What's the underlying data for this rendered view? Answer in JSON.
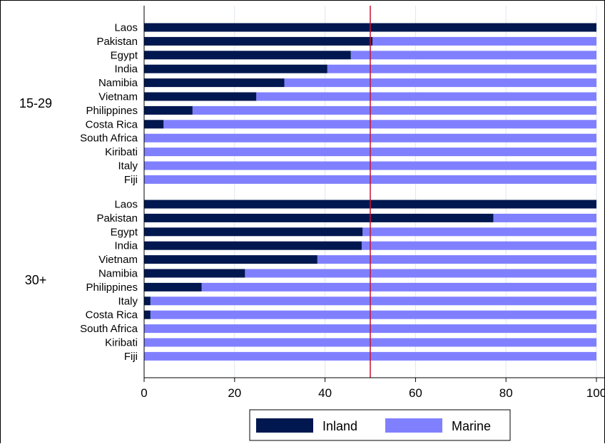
{
  "chart_data": {
    "type": "bar",
    "orientation": "horizontal",
    "stacked": true,
    "xlim": [
      0,
      100
    ],
    "x_ticks": [
      "0",
      "20",
      "40",
      "60",
      "80",
      "100"
    ],
    "reference_line": 50,
    "grid": true,
    "legend_position": "bottom",
    "legend": [
      {
        "name": "Inland",
        "color": "#00174f"
      },
      {
        "name": "Marine",
        "color": "#8080ff"
      }
    ],
    "groups": [
      {
        "label": "15-29",
        "categories": [
          "Laos",
          "Pakistan",
          "Egypt",
          "India",
          "Namibia",
          "Vietnam",
          "Philippines",
          "Costa Rica",
          "South Africa",
          "Kiribati",
          "Italy",
          "Fiji"
        ],
        "inland": [
          100,
          50.5,
          45.7,
          40.5,
          31,
          24.8,
          10.7,
          4.3,
          0,
          0,
          0,
          0
        ],
        "marine": [
          0,
          49.5,
          54.3,
          59.5,
          69,
          75.2,
          89.3,
          95.7,
          100,
          100,
          100,
          100
        ]
      },
      {
        "label": "30+",
        "categories": [
          "Laos",
          "Pakistan",
          "Egypt",
          "India",
          "Vietnam",
          "Namibia",
          "Philippines",
          "Italy",
          "Costa Rica",
          "South Africa",
          "Kiribati",
          "Fiji"
        ],
        "inland": [
          100,
          77.2,
          48.3,
          48.1,
          38.3,
          22.3,
          12.7,
          1.4,
          1.4,
          0,
          0,
          0
        ],
        "marine": [
          0,
          22.8,
          51.7,
          51.9,
          61.7,
          77.7,
          87.3,
          98.6,
          98.6,
          100,
          100,
          100
        ]
      }
    ]
  }
}
